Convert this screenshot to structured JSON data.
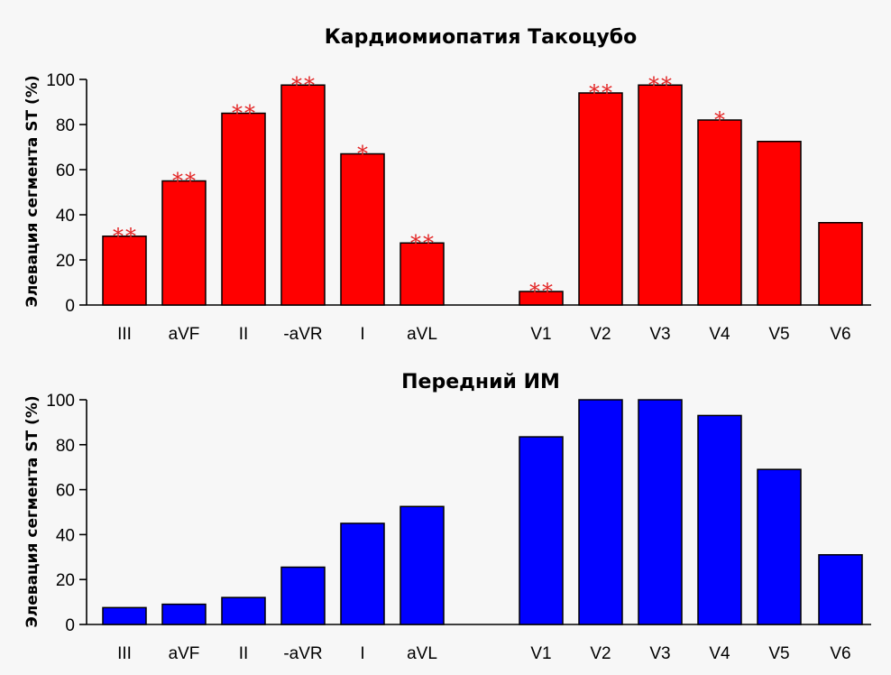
{
  "chart_data": [
    {
      "type": "bar",
      "title": "Кардиомиопатия Такоцубо",
      "ylabel": "Элевация сегмента ST (%)",
      "ylim": [
        0,
        100
      ],
      "yticks": [
        "0",
        "20",
        "40",
        "60",
        "80",
        "100"
      ],
      "color": "#ff0000",
      "annotation_color": "#e32626",
      "categories": [
        "III",
        "aVF",
        "II",
        "-aVR",
        "I",
        "aVL",
        "V1",
        "V2",
        "V3",
        "V4",
        "V5",
        "V6"
      ],
      "values": [
        30.5,
        55,
        85,
        97.5,
        67,
        27.5,
        6,
        94,
        97.5,
        82,
        72.5,
        36.5
      ],
      "annotations": [
        "**",
        "**",
        "**",
        "**",
        "*",
        "**",
        "**",
        "**",
        "**",
        "*",
        "",
        ""
      ]
    },
    {
      "type": "bar",
      "title": "Передний ИМ",
      "ylabel": "Элевация сегмента ST (%)",
      "ylim": [
        0,
        100
      ],
      "yticks": [
        "0",
        "20",
        "40",
        "60",
        "80",
        "100"
      ],
      "color": "#0000ff",
      "categories": [
        "III",
        "aVF",
        "II",
        "-aVR",
        "I",
        "aVL",
        "V1",
        "V2",
        "V3",
        "V4",
        "V5",
        "V6"
      ],
      "values": [
        7.5,
        9,
        12,
        25.5,
        45,
        52.5,
        83.5,
        100,
        100,
        93,
        69,
        31
      ]
    }
  ]
}
